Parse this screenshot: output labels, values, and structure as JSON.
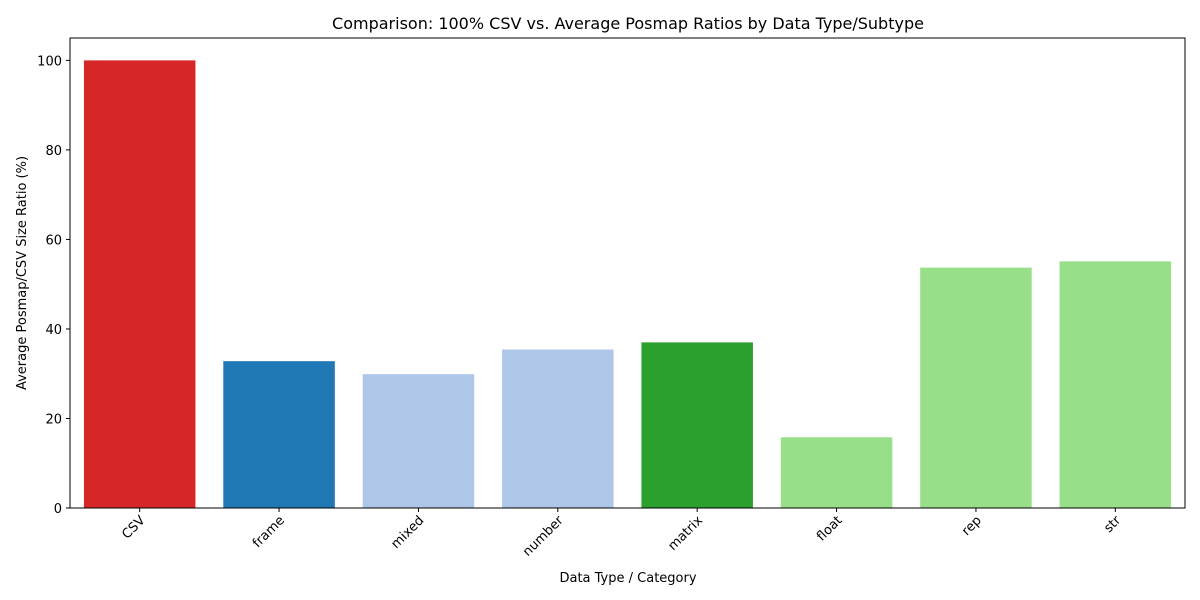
{
  "chart_data": {
    "type": "bar",
    "title": "Comparison: 100% CSV vs. Average Posmap Ratios by Data Type/Subtype",
    "xlabel": "Data Type / Category",
    "ylabel": "Average Posmap/CSV Size Ratio (%)",
    "categories": [
      "CSV",
      "frame",
      "mixed",
      "number",
      "matrix",
      "float",
      "rep",
      "str"
    ],
    "values": [
      100,
      32.8,
      29.9,
      35.4,
      37.0,
      15.8,
      53.7,
      55.1
    ],
    "colors": [
      "#d62728",
      "#1f77b4",
      "#aec7e8",
      "#aec7e8",
      "#2ca02c",
      "#98df8a",
      "#98df8a",
      "#98df8a"
    ],
    "ylim": [
      0,
      105
    ],
    "yticks": [
      0,
      20,
      40,
      60,
      80,
      100
    ],
    "xtick_rotation": 45,
    "grid": false,
    "legend": false
  }
}
